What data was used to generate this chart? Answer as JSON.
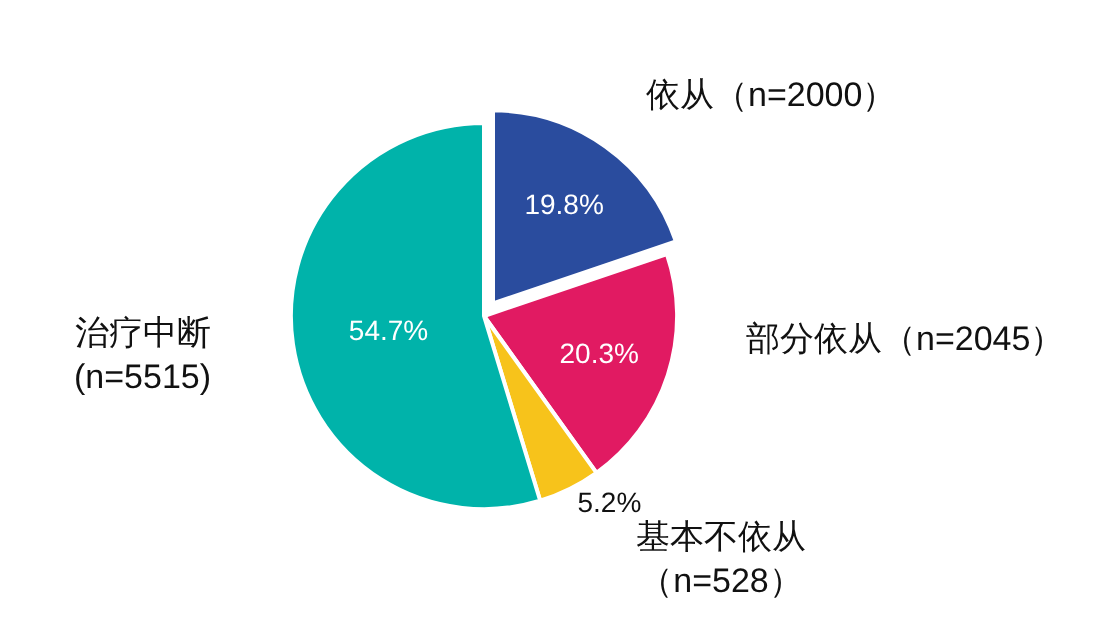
{
  "chart_data": {
    "type": "pie",
    "categories": [
      "依从（n=2000）",
      "部分依从（n=2045）",
      "基本不依从（n=528）",
      "治疗中断\n(n=5515)"
    ],
    "values": [
      19.8,
      20.3,
      5.2,
      54.7
    ],
    "value_labels": [
      "19.8%",
      "20.3%",
      "5.2%",
      "54.7%"
    ],
    "colors": [
      "#2a4c9e",
      "#e11a62",
      "#f7c31b",
      "#00b3aa"
    ],
    "legend": false
  }
}
